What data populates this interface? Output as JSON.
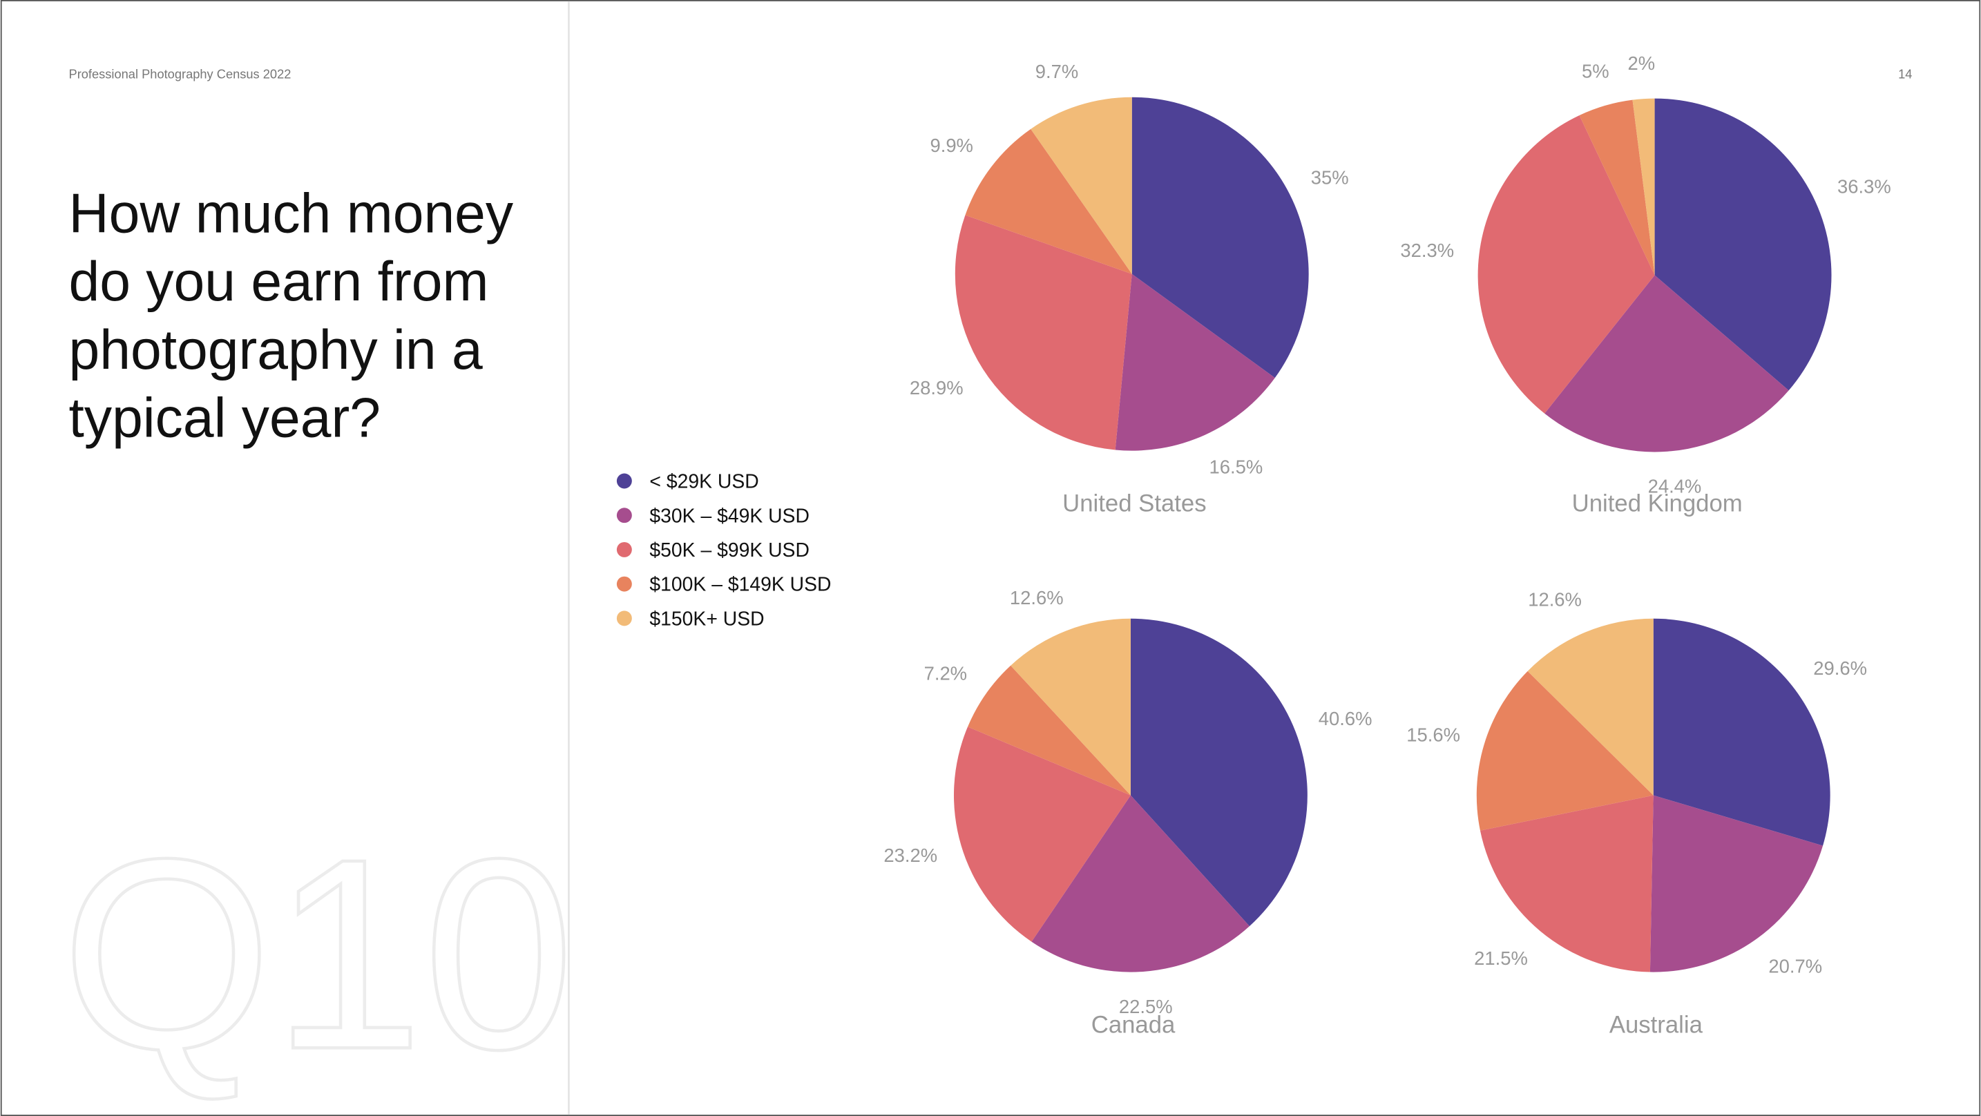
{
  "header": "Professional Photography Census 2022",
  "page_number": "14",
  "question": [
    "How much money",
    "do you earn from",
    "photography in a",
    "typical year?"
  ],
  "watermark": "Q10",
  "legend": {
    "categories": [
      "< $29K USD",
      "$30K – $49K USD",
      "$50K – $99K USD",
      "$100K – $149K USD",
      "$150K+ USD"
    ],
    "colors": [
      "#4e4196",
      "#a64d8e",
      "#e06a70",
      "#e8835e",
      "#f2bb78"
    ]
  },
  "chart_data": [
    {
      "type": "pie",
      "title": "United States",
      "values": [
        35,
        16.5,
        28.9,
        9.9,
        9.7
      ],
      "value_labels": [
        "35%",
        "16.5%",
        "28.9%",
        "9.9%",
        "9.7%"
      ]
    },
    {
      "type": "pie",
      "title": "United Kingdom",
      "values": [
        36.3,
        24.4,
        32.3,
        5,
        2
      ],
      "value_labels": [
        "36.3%",
        "24.4%",
        "32.3%",
        "5%",
        "2%"
      ]
    },
    {
      "type": "pie",
      "title": "Canada",
      "values": [
        40.6,
        22.5,
        23.2,
        7.2,
        12.6
      ],
      "value_labels": [
        "40.6%",
        "22.5%",
        "23.2%",
        "7.2%",
        "12.6%"
      ]
    },
    {
      "type": "pie",
      "title": "Australia",
      "values": [
        29.6,
        20.7,
        21.5,
        15.6,
        12.6
      ],
      "value_labels": [
        "29.6%",
        "20.7%",
        "21.5%",
        "15.6%",
        "12.6%"
      ]
    }
  ]
}
